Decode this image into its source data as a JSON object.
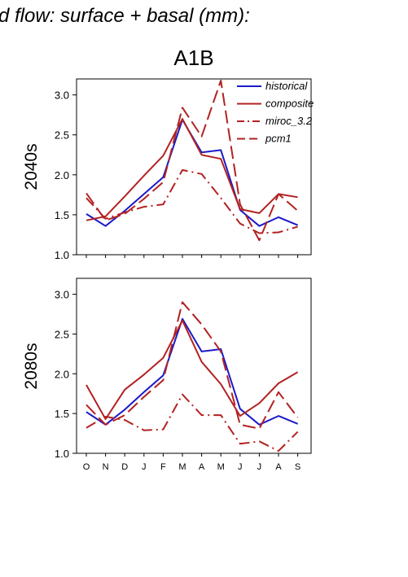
{
  "figure": {
    "title": "d flow: surface + basal (mm):",
    "scenario": "A1B"
  },
  "colors": {
    "historical": "#1a1ac8",
    "composite": "#b22222",
    "miroc_3.2": "#b22222",
    "pcm1": "#b22222"
  },
  "legend": {
    "placement": "top-right",
    "entries": [
      "historical",
      "composite",
      "miroc_3.2",
      "pcm1"
    ]
  },
  "chart_data": [
    {
      "type": "line",
      "panel_label": "2040s",
      "xlabel": "",
      "ylabel": "",
      "categories": [
        "O",
        "N",
        "D",
        "J",
        "F",
        "M",
        "A",
        "M",
        "J",
        "J",
        "A",
        "S"
      ],
      "ylim": [
        1.0,
        3.2
      ],
      "yticks": [
        "1.0",
        "1.5",
        "2.0",
        "2.5",
        "3.0"
      ],
      "series": [
        {
          "name": "historical",
          "style": "solid",
          "values": [
            1.51,
            1.36,
            1.55,
            1.76,
            1.97,
            2.69,
            2.28,
            2.31,
            1.56,
            1.36,
            1.47,
            1.37
          ]
        },
        {
          "name": "composite",
          "style": "solid",
          "values": [
            1.43,
            1.48,
            1.73,
            1.99,
            2.24,
            2.7,
            2.25,
            2.2,
            1.57,
            1.52,
            1.76,
            1.72
          ]
        },
        {
          "name": "miroc_3.2",
          "style": "dashdot",
          "values": [
            1.71,
            1.45,
            1.53,
            1.6,
            1.63,
            2.06,
            2.01,
            1.71,
            1.39,
            1.27,
            1.28,
            1.35
          ]
        },
        {
          "name": "pcm1",
          "style": "dashed",
          "values": [
            1.77,
            1.43,
            1.51,
            1.7,
            1.91,
            2.84,
            2.48,
            3.18,
            1.63,
            1.18,
            1.76,
            1.55
          ]
        }
      ]
    },
    {
      "type": "line",
      "panel_label": "2080s",
      "xlabel": "",
      "ylabel": "",
      "categories": [
        "O",
        "N",
        "D",
        "J",
        "F",
        "M",
        "A",
        "M",
        "J",
        "J",
        "A",
        "S"
      ],
      "ylim": [
        1.0,
        3.2
      ],
      "yticks": [
        "1.0",
        "1.5",
        "2.0",
        "2.5",
        "3.0"
      ],
      "series": [
        {
          "name": "historical",
          "style": "solid",
          "values": [
            1.52,
            1.36,
            1.55,
            1.77,
            1.98,
            2.69,
            2.28,
            2.31,
            1.56,
            1.36,
            1.47,
            1.37
          ]
        },
        {
          "name": "composite",
          "style": "solid",
          "values": [
            1.86,
            1.43,
            1.8,
            1.99,
            2.2,
            2.67,
            2.15,
            1.87,
            1.47,
            1.63,
            1.88,
            2.02
          ]
        },
        {
          "name": "miroc_3.2",
          "style": "dashdot",
          "values": [
            1.32,
            1.46,
            1.42,
            1.29,
            1.3,
            1.74,
            1.48,
            1.48,
            1.12,
            1.15,
            1.03,
            1.27
          ]
        },
        {
          "name": "pcm1",
          "style": "dashed",
          "values": [
            1.61,
            1.36,
            1.48,
            1.71,
            1.92,
            2.9,
            2.62,
            2.28,
            1.36,
            1.31,
            1.77,
            1.45
          ]
        }
      ]
    }
  ]
}
